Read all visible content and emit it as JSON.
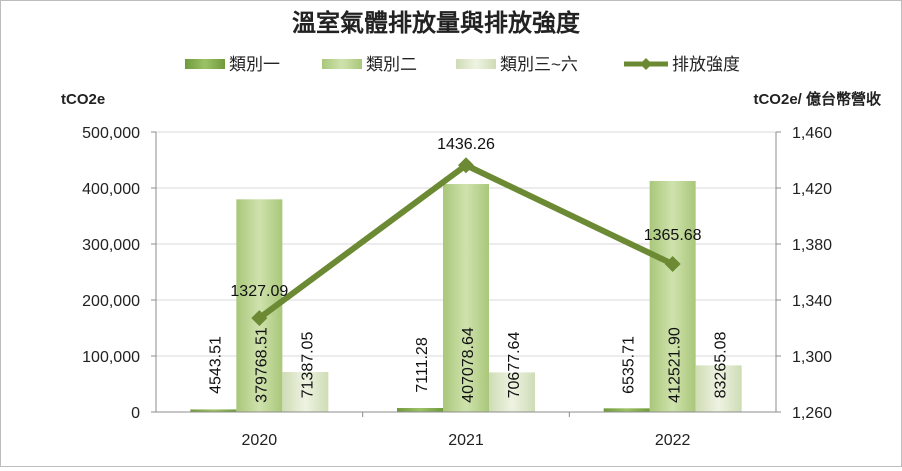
{
  "chart_data": {
    "type": "bar",
    "title": "溫室氣體排放量與排放強度",
    "categories": [
      "2020",
      "2021",
      "2022"
    ],
    "series": [
      {
        "name": "類別一",
        "type": "bar",
        "axis": "left",
        "values": [
          4543.51,
          7111.28,
          6535.71
        ],
        "labels": [
          "4543.51",
          "7111.28",
          "6535.71"
        ],
        "color": "#7faa48"
      },
      {
        "name": "類別二",
        "type": "bar",
        "axis": "left",
        "values": [
          379768.51,
          407078.64,
          412521.9
        ],
        "labels": [
          "379768.51",
          "407078.64",
          "412521.90"
        ],
        "color": "#bcd591"
      },
      {
        "name": "類別三~六",
        "type": "bar",
        "axis": "left",
        "values": [
          71387.05,
          70677.64,
          83265.08
        ],
        "labels": [
          "71387.05",
          "70677.64",
          "83265.08"
        ],
        "color": "#dfe8cc"
      },
      {
        "name": "排放強度",
        "type": "line",
        "axis": "right",
        "values": [
          1327.09,
          1436.26,
          1365.68
        ],
        "labels": [
          "1327.09",
          "1436.26",
          "1365.68"
        ],
        "color": "#6b8a33"
      }
    ],
    "ylabel_left": "tCO2e",
    "ylabel_right": "tCO2e/ 億台幣營收",
    "ylim_left": [
      0,
      500000
    ],
    "ylim_right": [
      1260,
      1460
    ],
    "yticks_left": [
      0,
      100000,
      200000,
      300000,
      400000,
      500000
    ],
    "ytick_labels_left": [
      "0",
      "100,000",
      "200,000",
      "300,000",
      "400,000",
      "500,000"
    ],
    "yticks_right": [
      1260,
      1300,
      1340,
      1380,
      1420,
      1460
    ],
    "ytick_labels_right": [
      "1,260",
      "1,300",
      "1,340",
      "1,380",
      "1,420",
      "1,460"
    ],
    "grid": true,
    "legend_position": "top"
  }
}
